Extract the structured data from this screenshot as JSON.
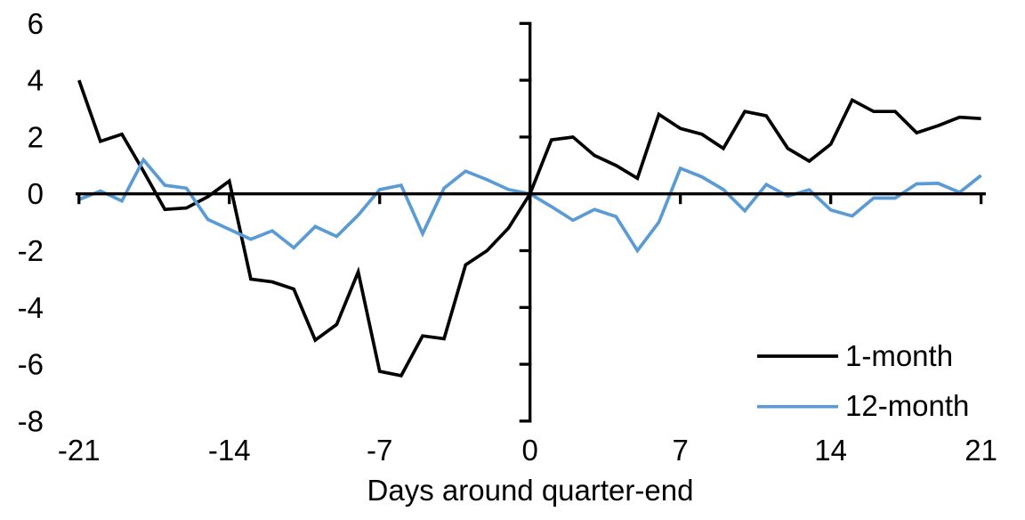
{
  "chart_data": {
    "type": "line",
    "title": "",
    "xlabel": "Days around quarter-end",
    "ylabel": "",
    "xlim": [
      -21,
      21
    ],
    "ylim": [
      -8,
      6
    ],
    "grid": false,
    "legend_position": "inside-right-lower",
    "background": "#FFFFFF",
    "axis_color": "#000000",
    "xticks": [
      -21,
      -14,
      -7,
      0,
      7,
      14,
      21
    ],
    "yticks": [
      6,
      4,
      2,
      0,
      -2,
      -4,
      -6,
      -8
    ],
    "x": [
      -21,
      -20,
      -19,
      -18,
      -17,
      -16,
      -15,
      -14,
      -13,
      -12,
      -11,
      -10,
      -9,
      -8,
      -7,
      -6,
      -5,
      -4,
      -3,
      -2,
      -1,
      0,
      1,
      2,
      3,
      4,
      5,
      6,
      7,
      8,
      9,
      10,
      11,
      12,
      13,
      14,
      15,
      16,
      17,
      18,
      19,
      20,
      21
    ],
    "series": [
      {
        "name": "1-month",
        "color": "#000000",
        "values": [
          4.0,
          1.85,
          2.1,
          0.8,
          -0.55,
          -0.5,
          -0.1,
          0.45,
          -3.0,
          -3.1,
          -3.35,
          -5.15,
          -4.6,
          -2.75,
          -6.25,
          -6.4,
          -5.0,
          -5.1,
          -2.5,
          -2.0,
          -1.2,
          0.0,
          1.9,
          2.0,
          1.35,
          1.0,
          0.55,
          2.8,
          2.3,
          2.1,
          1.6,
          2.9,
          2.75,
          1.6,
          1.15,
          1.75,
          3.3,
          2.9,
          2.9,
          2.15,
          2.4,
          2.7,
          2.65
        ]
      },
      {
        "name": "12-month",
        "color": "#5B9BD5",
        "values": [
          -0.2,
          0.1,
          -0.25,
          1.2,
          0.3,
          0.2,
          -0.9,
          -1.25,
          -1.6,
          -1.3,
          -1.9,
          -1.15,
          -1.5,
          -0.75,
          0.15,
          0.3,
          -1.4,
          0.2,
          0.8,
          0.5,
          0.15,
          0.0,
          -0.45,
          -0.93,
          -0.55,
          -0.8,
          -2.0,
          -1.0,
          0.9,
          0.6,
          0.15,
          -0.6,
          0.33,
          -0.08,
          0.14,
          -0.57,
          -0.78,
          -0.15,
          -0.15,
          0.35,
          0.37,
          0.05,
          0.65
        ]
      }
    ]
  }
}
